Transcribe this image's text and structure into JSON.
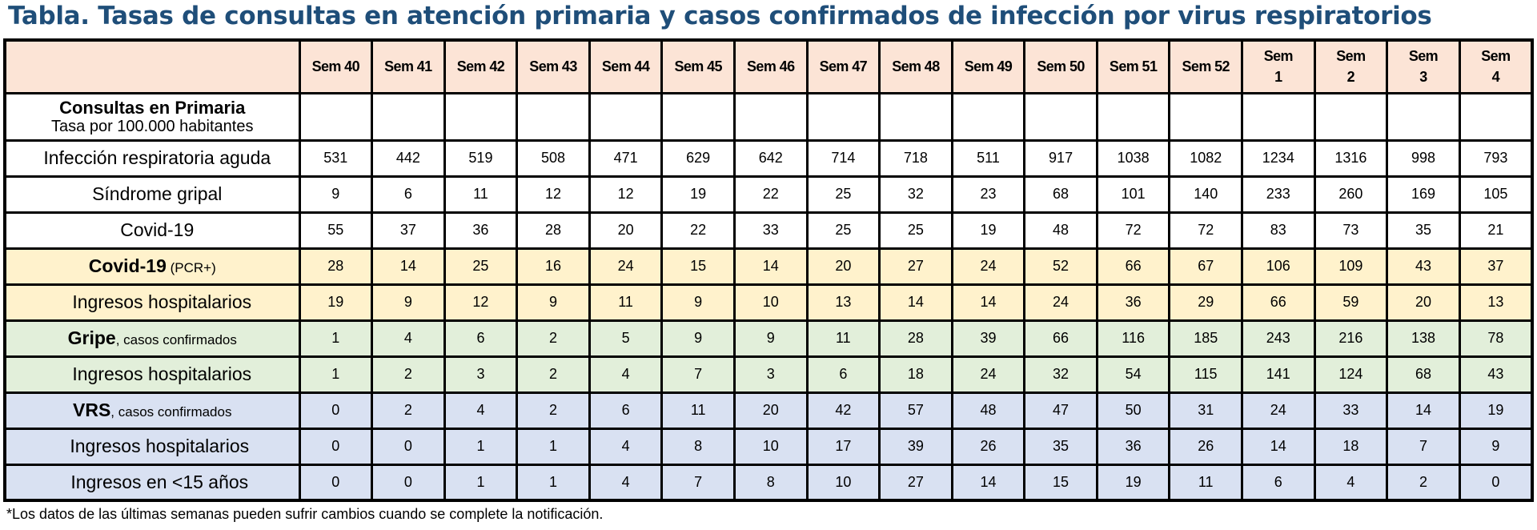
{
  "title": "Tabla. Tasas de consultas en atención primaria y casos confirmados de infección por virus respiratorios",
  "weeks": [
    "Sem 40",
    "Sem 41",
    "Sem 42",
    "Sem 43",
    "Sem 44",
    "Sem 45",
    "Sem 46",
    "Sem 47",
    "Sem 48",
    "Sem 49",
    "Sem 50",
    "Sem 51",
    "Sem 52",
    "Sem 1",
    "Sem 2",
    "Sem 3",
    "Sem 4"
  ],
  "section": {
    "title": "Consultas en Primaria",
    "subtitle": "Tasa por 100.000 habitantes"
  },
  "rows": [
    {
      "main": "",
      "sub": "Infección respiratoria aguda",
      "style": "indent1",
      "color": "white",
      "values": [
        531,
        442,
        519,
        508,
        471,
        629,
        642,
        714,
        718,
        511,
        917,
        1038,
        1082,
        1234,
        1316,
        998,
        793
      ]
    },
    {
      "main": "",
      "sub": "Síndrome gripal",
      "style": "indent1",
      "color": "white",
      "values": [
        9,
        6,
        11,
        12,
        12,
        19,
        22,
        25,
        32,
        23,
        68,
        101,
        140,
        233,
        260,
        169,
        105
      ]
    },
    {
      "main": "",
      "sub": "Covid-19",
      "style": "indent1",
      "color": "white",
      "values": [
        55,
        37,
        36,
        28,
        20,
        22,
        33,
        25,
        25,
        19,
        48,
        72,
        72,
        83,
        73,
        35,
        21
      ]
    },
    {
      "main": "Covid-19",
      "sub": " (PCR+)",
      "style": "head",
      "color": "yellow",
      "values": [
        28,
        14,
        25,
        16,
        24,
        15,
        14,
        20,
        27,
        24,
        52,
        66,
        67,
        106,
        109,
        43,
        37
      ]
    },
    {
      "main": "",
      "sub": "Ingresos hospitalarios",
      "style": "indent2",
      "color": "yellow",
      "values": [
        19,
        9,
        12,
        9,
        11,
        9,
        10,
        13,
        14,
        14,
        24,
        36,
        29,
        66,
        59,
        20,
        13
      ]
    },
    {
      "main": "Gripe",
      "sub": ", casos confirmados",
      "style": "head",
      "color": "green",
      "values": [
        1,
        4,
        6,
        2,
        5,
        9,
        9,
        11,
        28,
        39,
        66,
        116,
        185,
        243,
        216,
        138,
        78
      ]
    },
    {
      "main": "",
      "sub": "Ingresos hospitalarios",
      "style": "indent2",
      "color": "green",
      "values": [
        1,
        2,
        3,
        2,
        4,
        7,
        3,
        6,
        18,
        24,
        32,
        54,
        115,
        141,
        124,
        68,
        43
      ]
    },
    {
      "main": "VRS",
      "sub": ", casos confirmados",
      "style": "head",
      "color": "blue",
      "values": [
        0,
        2,
        4,
        2,
        6,
        11,
        20,
        42,
        57,
        48,
        47,
        50,
        31,
        24,
        33,
        14,
        19
      ]
    },
    {
      "main": "",
      "sub": "Ingresos hospitalarios",
      "style": "indent3",
      "color": "blue",
      "values": [
        0,
        0,
        1,
        1,
        4,
        8,
        10,
        17,
        39,
        26,
        35,
        36,
        26,
        14,
        18,
        7,
        9
      ]
    },
    {
      "main": "",
      "sub": "Ingresos en <15 años",
      "style": "indent3",
      "color": "blue",
      "values": [
        0,
        0,
        1,
        1,
        4,
        7,
        8,
        10,
        27,
        14,
        15,
        19,
        11,
        6,
        4,
        2,
        0
      ]
    }
  ],
  "footnote": "*Los datos de las últimas semanas pueden sufrir cambios cuando se complete la notificación.",
  "colors": {
    "title": "#1f4e79",
    "header": "#fce4d6",
    "covid": "#fff2cc",
    "gripe": "#e2efda",
    "vrs": "#d9e1f2"
  }
}
